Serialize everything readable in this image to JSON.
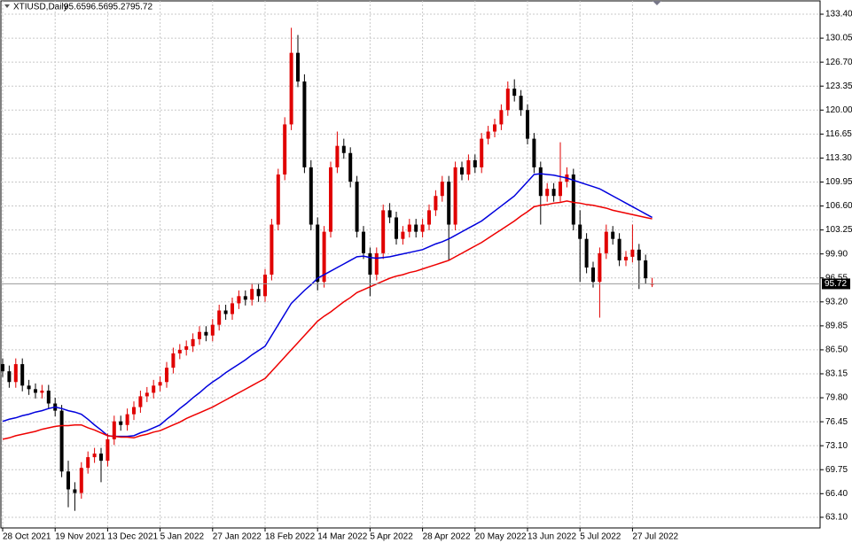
{
  "chart_data": {
    "type": "candlestick",
    "title": "XTIUSD,Daily",
    "categories": [
      "28 Oct 2021",
      null,
      null,
      null,
      null,
      null,
      null,
      null,
      "19 Nov 2021",
      null,
      null,
      null,
      null,
      null,
      null,
      null,
      "13 Dec 2021",
      null,
      null,
      null,
      null,
      null,
      null,
      null,
      "5 Jan 2022",
      null,
      null,
      null,
      null,
      null,
      null,
      null,
      "27 Jan 2022",
      null,
      null,
      null,
      null,
      null,
      null,
      null,
      "18 Feb 2022",
      null,
      null,
      null,
      null,
      null,
      null,
      null,
      "14 Mar 2022",
      null,
      null,
      null,
      null,
      null,
      null,
      null,
      "5 Apr 2022",
      null,
      null,
      null,
      null,
      null,
      null,
      null,
      "28 Apr 2022",
      null,
      null,
      null,
      null,
      null,
      null,
      null,
      "20 May 2022",
      null,
      null,
      null,
      null,
      null,
      null,
      null,
      "13 Jun 2022",
      null,
      null,
      null,
      null,
      null,
      null,
      null,
      "5 Jul 2022",
      null,
      null,
      null,
      null,
      null,
      null,
      null,
      "27 Jul 2022",
      null,
      null,
      null
    ],
    "open": [
      84.5,
      83.5,
      82.0,
      84.5,
      81.5,
      81.0,
      80.5,
      80.8,
      79.0,
      78.0,
      69.5,
      67.0,
      66.5,
      70.0,
      71.5,
      72.0,
      71.0,
      74.0,
      76.5,
      76.0,
      77.5,
      78.5,
      80.0,
      80.5,
      81.5,
      82.0,
      84.0,
      86.0,
      86.5,
      87.0,
      88.0,
      89.0,
      88.5,
      90.0,
      92.0,
      91.5,
      93.0,
      94.0,
      93.5,
      95.0,
      94.0,
      97.0,
      104.0,
      111.0,
      118.0,
      128.0,
      124.0,
      112.0,
      104.0,
      96.0,
      103.0,
      112.0,
      115.0,
      114.0,
      110.0,
      103.0,
      100.0,
      97.0,
      100.0,
      106.0,
      105.0,
      102.0,
      103.0,
      104.0,
      103.0,
      104.0,
      106.0,
      108.0,
      110.0,
      104.0,
      112.0,
      111.0,
      113.0,
      112.0,
      116.0,
      117.0,
      118.0,
      120.0,
      123.0,
      122.0,
      120.0,
      116.0,
      112.0,
      108.0,
      109.0,
      108.0,
      110.0,
      111.0,
      104.0,
      102.0,
      98.0,
      96.0,
      100.0,
      103.0,
      102.0,
      99.0,
      99.5,
      100.5,
      99.0,
      95.65
    ],
    "high": [
      85.3,
      84.3,
      85.3,
      85.3,
      82.3,
      81.8,
      81.6,
      81.6,
      79.8,
      78.8,
      71.0,
      68.0,
      70.8,
      72.3,
      72.8,
      72.8,
      74.8,
      77.3,
      77.3,
      78.3,
      79.3,
      80.8,
      81.3,
      82.3,
      82.8,
      84.8,
      86.8,
      87.3,
      87.8,
      88.8,
      89.8,
      89.8,
      90.8,
      92.8,
      92.8,
      93.8,
      94.8,
      94.8,
      95.8,
      95.8,
      97.8,
      104.8,
      111.8,
      119.0,
      131.5,
      130.5,
      125.0,
      113.0,
      105.0,
      103.8,
      112.8,
      117.0,
      116.0,
      114.8,
      110.8,
      103.8,
      100.8,
      100.8,
      106.8,
      107.0,
      105.8,
      103.8,
      104.8,
      104.8,
      104.8,
      106.8,
      108.8,
      110.8,
      110.8,
      112.8,
      112.8,
      113.8,
      113.8,
      116.8,
      117.8,
      118.8,
      120.8,
      124.0,
      124.3,
      122.8,
      120.8,
      116.8,
      112.8,
      109.8,
      109.8,
      115.5,
      112.0,
      111.8,
      106.0,
      102.8,
      98.8,
      100.8,
      104.0,
      103.8,
      102.8,
      100.3,
      104.0,
      101.3,
      99.8,
      96.56
    ],
    "low": [
      82.7,
      81.2,
      81.2,
      80.7,
      80.2,
      79.7,
      79.7,
      78.2,
      77.2,
      68.7,
      64.5,
      64.0,
      65.7,
      69.2,
      70.7,
      68.0,
      70.2,
      73.2,
      75.2,
      75.2,
      76.7,
      77.7,
      79.2,
      79.7,
      80.7,
      81.2,
      83.2,
      85.2,
      85.7,
      86.2,
      87.2,
      87.7,
      87.7,
      89.2,
      90.7,
      90.7,
      92.2,
      92.7,
      92.7,
      93.2,
      93.2,
      96.2,
      103.2,
      110.2,
      117.2,
      123.2,
      111.2,
      103.2,
      94.8,
      95.2,
      102.2,
      111.2,
      113.2,
      109.2,
      102.2,
      99.2,
      94.0,
      96.2,
      99.2,
      104.2,
      101.2,
      101.2,
      102.2,
      102.2,
      102.2,
      103.2,
      105.2,
      107.2,
      99.0,
      103.2,
      110.2,
      110.2,
      111.2,
      111.2,
      115.2,
      116.2,
      117.2,
      119.2,
      121.2,
      119.2,
      115.2,
      111.2,
      104.0,
      107.2,
      107.2,
      107.2,
      109.2,
      103.2,
      96.0,
      97.2,
      95.2,
      91.0,
      99.2,
      101.2,
      98.2,
      98.2,
      98.7,
      95.0,
      95.7,
      95.27
    ],
    "close": [
      83.5,
      82.0,
      84.5,
      81.5,
      81.0,
      80.5,
      80.8,
      79.0,
      78.0,
      69.5,
      67.0,
      66.5,
      70.0,
      71.5,
      72.0,
      71.0,
      74.0,
      76.5,
      76.0,
      77.5,
      78.5,
      80.0,
      80.5,
      81.5,
      82.0,
      84.0,
      86.0,
      86.5,
      87.0,
      88.0,
      89.0,
      88.5,
      90.0,
      92.0,
      91.5,
      93.0,
      94.0,
      93.5,
      95.0,
      94.0,
      97.0,
      104.0,
      111.0,
      118.0,
      128.0,
      124.0,
      112.0,
      104.0,
      96.0,
      103.0,
      112.0,
      115.0,
      114.0,
      110.0,
      103.0,
      100.0,
      97.0,
      100.0,
      106.0,
      105.0,
      102.0,
      103.0,
      104.0,
      103.0,
      104.0,
      106.0,
      108.0,
      110.0,
      104.0,
      112.0,
      111.0,
      113.0,
      112.0,
      116.0,
      117.0,
      118.0,
      120.0,
      123.0,
      122.0,
      120.0,
      116.0,
      112.0,
      108.0,
      109.0,
      108.0,
      110.0,
      111.0,
      104.0,
      102.0,
      98.0,
      96.0,
      100.0,
      103.0,
      102.0,
      99.0,
      99.5,
      100.5,
      99.0,
      96.5,
      95.72
    ],
    "up_color": "#e00000",
    "down_color": "#000000",
    "series": [
      {
        "color": "#0000dd",
        "values": [
          76.5,
          76.8,
          77.0,
          77.3,
          77.5,
          77.8,
          78.0,
          78.3,
          78.5,
          78.3,
          78.0,
          77.8,
          77.5,
          76.8,
          76.0,
          75.3,
          74.5,
          74.4,
          74.4,
          74.4,
          74.5,
          74.9,
          75.2,
          75.6,
          76.0,
          76.8,
          77.5,
          78.3,
          79.0,
          79.8,
          80.5,
          81.3,
          82.0,
          82.6,
          83.3,
          83.9,
          84.5,
          85.1,
          85.8,
          86.4,
          87.0,
          88.5,
          90.0,
          91.5,
          93.0,
          93.9,
          94.8,
          95.6,
          96.5,
          97.0,
          97.5,
          98.0,
          98.5,
          99.0,
          99.5,
          99.6,
          99.4,
          99.3,
          99.4,
          99.5,
          99.7,
          99.9,
          100.1,
          100.3,
          100.5,
          100.9,
          101.3,
          101.6,
          102.0,
          102.5,
          103.0,
          103.5,
          104.0,
          104.5,
          105.2,
          105.9,
          106.6,
          107.3,
          108.0,
          109.0,
          110.0,
          111.0,
          111.1,
          111.0,
          110.9,
          110.7,
          110.5,
          110.2,
          109.9,
          109.6,
          109.3,
          109.0,
          108.5,
          108.0,
          107.5,
          107.0,
          106.5,
          106.0,
          105.5,
          105.0
        ]
      },
      {
        "color": "#ee0000",
        "values": [
          74.0,
          74.2,
          74.5,
          74.7,
          74.9,
          75.1,
          75.4,
          75.6,
          75.8,
          75.9,
          75.9,
          76.0,
          76.0,
          75.6,
          75.3,
          74.9,
          74.5,
          74.4,
          74.3,
          74.3,
          74.2,
          74.5,
          74.7,
          75.0,
          75.2,
          75.6,
          76.0,
          76.4,
          76.9,
          77.3,
          77.7,
          78.1,
          78.5,
          79.0,
          79.5,
          80.0,
          80.5,
          81.0,
          81.5,
          82.0,
          82.5,
          83.5,
          84.5,
          85.5,
          86.5,
          87.5,
          88.5,
          89.5,
          90.5,
          91.2,
          91.8,
          92.5,
          93.2,
          93.8,
          94.5,
          94.9,
          95.3,
          95.7,
          96.1,
          96.5,
          96.8,
          97.0,
          97.3,
          97.5,
          97.8,
          98.1,
          98.4,
          98.7,
          99.0,
          99.5,
          100.0,
          100.5,
          101.0,
          101.5,
          102.1,
          102.7,
          103.3,
          103.9,
          104.5,
          105.2,
          105.8,
          106.5,
          106.7,
          106.8,
          107.0,
          107.1,
          107.3,
          107.1,
          107.0,
          106.8,
          106.7,
          106.5,
          106.3,
          106.0,
          105.8,
          105.6,
          105.4,
          105.2,
          105.0,
          104.8
        ]
      }
    ],
    "ylim": [
      61.61,
      135.26
    ],
    "yticks": [
      {
        "value": 133.4,
        "label": "133.40"
      },
      {
        "value": 130.05,
        "label": "130.05"
      },
      {
        "value": 126.7,
        "label": "126.70"
      },
      {
        "value": 123.35,
        "label": "123.35"
      },
      {
        "value": 120,
        "label": "120.00"
      },
      {
        "value": 116.65,
        "label": "116.65"
      },
      {
        "value": 113.3,
        "label": "113.30"
      },
      {
        "value": 109.95,
        "label": "109.95"
      },
      {
        "value": 106.6,
        "label": "106.60"
      },
      {
        "value": 103.25,
        "label": "103.25"
      },
      {
        "value": 99.9,
        "label": "99.90"
      },
      {
        "value": 96.55,
        "label": "96.55"
      },
      {
        "value": 93.2,
        "label": "93.20"
      },
      {
        "value": 89.85,
        "label": "89.85"
      },
      {
        "value": 86.5,
        "label": "86.50"
      },
      {
        "value": 83.15,
        "label": "83.15"
      },
      {
        "value": 79.8,
        "label": "79.80"
      },
      {
        "value": 76.45,
        "label": "76.45"
      },
      {
        "value": 73.1,
        "label": "73.10"
      },
      {
        "value": 69.75,
        "label": "69.75"
      },
      {
        "value": 66.4,
        "label": "66.40"
      },
      {
        "value": 63.1,
        "label": "63.10"
      }
    ],
    "grid": true
  }
}
